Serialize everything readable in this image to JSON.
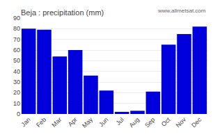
{
  "chart_data": {
    "type": "bar",
    "title": "Beja : precipitation (mm)",
    "categories": [
      "Jan",
      "Feb",
      "Mar",
      "Apr",
      "May",
      "Jun",
      "Jul",
      "Aug",
      "Sep",
      "Oct",
      "Nov",
      "Dec"
    ],
    "values": [
      80,
      79,
      54,
      60,
      36,
      22,
      2,
      3,
      21,
      65,
      75,
      82
    ],
    "color": "#0000dd",
    "ylim": [
      0,
      90
    ],
    "yticks": [
      0,
      10,
      20,
      30,
      40,
      50,
      60,
      70,
      80,
      90
    ],
    "grid": true,
    "annotations": [
      "www.allmetsat.com"
    ]
  }
}
